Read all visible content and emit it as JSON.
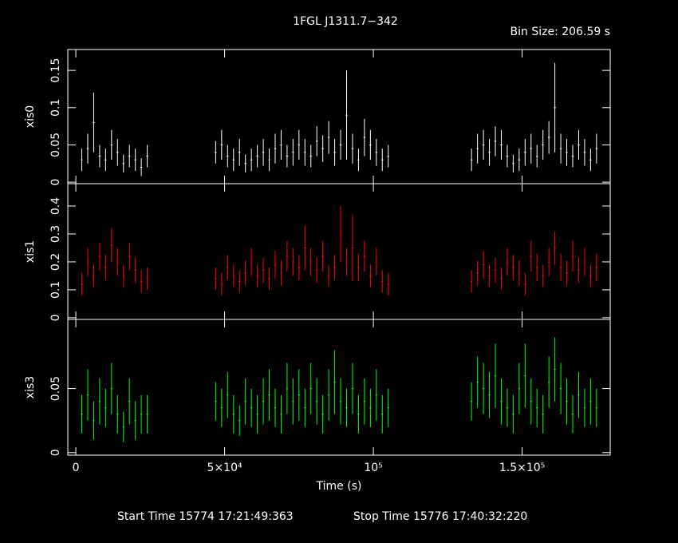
{
  "title": "1FGL J1311.7−342",
  "bin_size": "Bin Size: 206.59 s",
  "x_axis": {
    "label": "Time (s)",
    "xlim": [
      -2700,
      179600
    ],
    "xticks": [
      0,
      {
        "value": 50000,
        "label": "5×10⁴"
      },
      {
        "value": 100000,
        "label": "10⁵"
      },
      {
        "value": 150000,
        "label": "1.5×10⁵"
      }
    ]
  },
  "start_time": "Start Time 15774 17:21:49:363",
  "stop_time": "Stop Time 15776 17:40:32:220",
  "chart_data": [
    {
      "type": "errorbar",
      "ylabel": "xis0",
      "color": "#ffffff",
      "ylim": [
        -0.002,
        0.178
      ],
      "yticks": [
        0,
        0.05,
        0.1,
        0.15
      ],
      "x": [
        2000,
        4000,
        6000,
        8000,
        10000,
        12000,
        14000,
        16000,
        18000,
        20000,
        22000,
        24000,
        47000,
        49000,
        51000,
        53000,
        55000,
        57000,
        59000,
        61000,
        63000,
        65000,
        67000,
        69000,
        71000,
        73000,
        75000,
        77000,
        79000,
        81000,
        83000,
        85000,
        87000,
        89000,
        91000,
        93000,
        95000,
        97000,
        99000,
        101000,
        103000,
        105000,
        133000,
        135000,
        137000,
        139000,
        141000,
        143000,
        145000,
        147000,
        149000,
        151000,
        153000,
        155000,
        157000,
        159000,
        161000,
        163000,
        165000,
        167000,
        169000,
        171000,
        173000,
        175000
      ],
      "values": [
        0.03,
        0.045,
        0.08,
        0.035,
        0.03,
        0.05,
        0.04,
        0.025,
        0.035,
        0.03,
        0.02,
        0.035,
        0.04,
        0.05,
        0.035,
        0.03,
        0.04,
        0.025,
        0.03,
        0.035,
        0.04,
        0.03,
        0.045,
        0.05,
        0.035,
        0.04,
        0.05,
        0.04,
        0.035,
        0.055,
        0.045,
        0.06,
        0.04,
        0.05,
        0.09,
        0.045,
        0.03,
        0.06,
        0.05,
        0.04,
        0.03,
        0.035,
        0.03,
        0.045,
        0.05,
        0.04,
        0.055,
        0.05,
        0.035,
        0.025,
        0.03,
        0.04,
        0.045,
        0.035,
        0.05,
        0.06,
        0.1,
        0.045,
        0.04,
        0.035,
        0.05,
        0.04,
        0.03,
        0.045
      ],
      "errors": [
        0.015,
        0.02,
        0.04,
        0.015,
        0.015,
        0.02,
        0.018,
        0.012,
        0.015,
        0.015,
        0.012,
        0.015,
        0.015,
        0.02,
        0.015,
        0.015,
        0.018,
        0.012,
        0.015,
        0.015,
        0.018,
        0.015,
        0.02,
        0.02,
        0.015,
        0.018,
        0.02,
        0.018,
        0.015,
        0.02,
        0.018,
        0.022,
        0.018,
        0.02,
        0.06,
        0.02,
        0.015,
        0.025,
        0.02,
        0.018,
        0.015,
        0.015,
        0.015,
        0.02,
        0.02,
        0.018,
        0.02,
        0.02,
        0.015,
        0.012,
        0.015,
        0.018,
        0.02,
        0.015,
        0.02,
        0.022,
        0.06,
        0.02,
        0.018,
        0.015,
        0.02,
        0.018,
        0.015,
        0.02
      ]
    },
    {
      "type": "errorbar",
      "ylabel": "xis1",
      "color": "#ff0000",
      "ylim": [
        -0.006,
        0.48
      ],
      "yticks": [
        0,
        0.1,
        0.2,
        0.3,
        0.4
      ],
      "x": [
        2000,
        4000,
        6000,
        8000,
        10000,
        12000,
        14000,
        16000,
        18000,
        20000,
        22000,
        24000,
        47000,
        49000,
        51000,
        53000,
        55000,
        57000,
        59000,
        61000,
        63000,
        65000,
        67000,
        69000,
        71000,
        73000,
        75000,
        77000,
        79000,
        81000,
        83000,
        85000,
        87000,
        89000,
        91000,
        93000,
        95000,
        97000,
        99000,
        101000,
        103000,
        105000,
        133000,
        135000,
        137000,
        139000,
        141000,
        143000,
        145000,
        147000,
        149000,
        151000,
        153000,
        155000,
        157000,
        159000,
        161000,
        163000,
        165000,
        167000,
        169000,
        171000,
        173000,
        175000
      ],
      "values": [
        0.12,
        0.2,
        0.15,
        0.22,
        0.18,
        0.26,
        0.2,
        0.15,
        0.22,
        0.17,
        0.13,
        0.14,
        0.14,
        0.12,
        0.18,
        0.15,
        0.13,
        0.16,
        0.2,
        0.15,
        0.17,
        0.14,
        0.19,
        0.16,
        0.22,
        0.2,
        0.18,
        0.25,
        0.2,
        0.17,
        0.22,
        0.15,
        0.18,
        0.3,
        0.2,
        0.25,
        0.18,
        0.22,
        0.15,
        0.2,
        0.13,
        0.12,
        0.13,
        0.16,
        0.19,
        0.15,
        0.17,
        0.14,
        0.2,
        0.18,
        0.16,
        0.12,
        0.22,
        0.18,
        0.15,
        0.2,
        0.25,
        0.18,
        0.16,
        0.22,
        0.17,
        0.2,
        0.15,
        0.18
      ],
      "errors": [
        0.04,
        0.05,
        0.04,
        0.05,
        0.045,
        0.06,
        0.05,
        0.04,
        0.05,
        0.045,
        0.04,
        0.04,
        0.04,
        0.04,
        0.045,
        0.04,
        0.04,
        0.045,
        0.05,
        0.04,
        0.045,
        0.04,
        0.05,
        0.045,
        0.055,
        0.05,
        0.045,
        0.08,
        0.05,
        0.045,
        0.055,
        0.04,
        0.045,
        0.1,
        0.05,
        0.12,
        0.05,
        0.055,
        0.04,
        0.05,
        0.04,
        0.04,
        0.04,
        0.045,
        0.05,
        0.04,
        0.045,
        0.04,
        0.05,
        0.045,
        0.045,
        0.04,
        0.055,
        0.05,
        0.04,
        0.05,
        0.06,
        0.05,
        0.045,
        0.055,
        0.045,
        0.05,
        0.04,
        0.05
      ]
    },
    {
      "type": "errorbar",
      "ylabel": "xis3",
      "color": "#00ff00",
      "ylim": [
        -0.002,
        0.104
      ],
      "yticks": [
        0,
        0.05
      ],
      "x": [
        2000,
        4000,
        6000,
        8000,
        10000,
        12000,
        14000,
        16000,
        18000,
        20000,
        22000,
        24000,
        47000,
        49000,
        51000,
        53000,
        55000,
        57000,
        59000,
        61000,
        63000,
        65000,
        67000,
        69000,
        71000,
        73000,
        75000,
        77000,
        79000,
        81000,
        83000,
        85000,
        87000,
        89000,
        91000,
        93000,
        95000,
        97000,
        99000,
        101000,
        103000,
        105000,
        133000,
        135000,
        137000,
        139000,
        141000,
        143000,
        145000,
        147000,
        149000,
        151000,
        153000,
        155000,
        157000,
        159000,
        161000,
        163000,
        165000,
        167000,
        169000,
        171000,
        173000,
        175000
      ],
      "values": [
        0.03,
        0.045,
        0.025,
        0.04,
        0.035,
        0.05,
        0.03,
        0.02,
        0.04,
        0.025,
        0.03,
        0.03,
        0.04,
        0.035,
        0.045,
        0.03,
        0.025,
        0.04,
        0.035,
        0.03,
        0.04,
        0.045,
        0.035,
        0.03,
        0.05,
        0.04,
        0.045,
        0.035,
        0.05,
        0.04,
        0.03,
        0.045,
        0.055,
        0.04,
        0.035,
        0.05,
        0.03,
        0.04,
        0.035,
        0.045,
        0.03,
        0.035,
        0.04,
        0.055,
        0.05,
        0.045,
        0.06,
        0.04,
        0.035,
        0.03,
        0.05,
        0.06,
        0.04,
        0.035,
        0.03,
        0.055,
        0.065,
        0.05,
        0.04,
        0.03,
        0.045,
        0.035,
        0.04,
        0.035
      ],
      "errors": [
        0.015,
        0.02,
        0.015,
        0.018,
        0.015,
        0.02,
        0.015,
        0.012,
        0.018,
        0.015,
        0.015,
        0.015,
        0.015,
        0.015,
        0.018,
        0.015,
        0.012,
        0.018,
        0.015,
        0.015,
        0.018,
        0.02,
        0.015,
        0.015,
        0.02,
        0.018,
        0.02,
        0.015,
        0.02,
        0.018,
        0.015,
        0.02,
        0.025,
        0.018,
        0.015,
        0.02,
        0.015,
        0.018,
        0.015,
        0.02,
        0.015,
        0.015,
        0.015,
        0.02,
        0.02,
        0.018,
        0.025,
        0.018,
        0.015,
        0.015,
        0.02,
        0.025,
        0.018,
        0.015,
        0.015,
        0.02,
        0.025,
        0.02,
        0.018,
        0.015,
        0.018,
        0.015,
        0.018,
        0.015
      ]
    }
  ]
}
